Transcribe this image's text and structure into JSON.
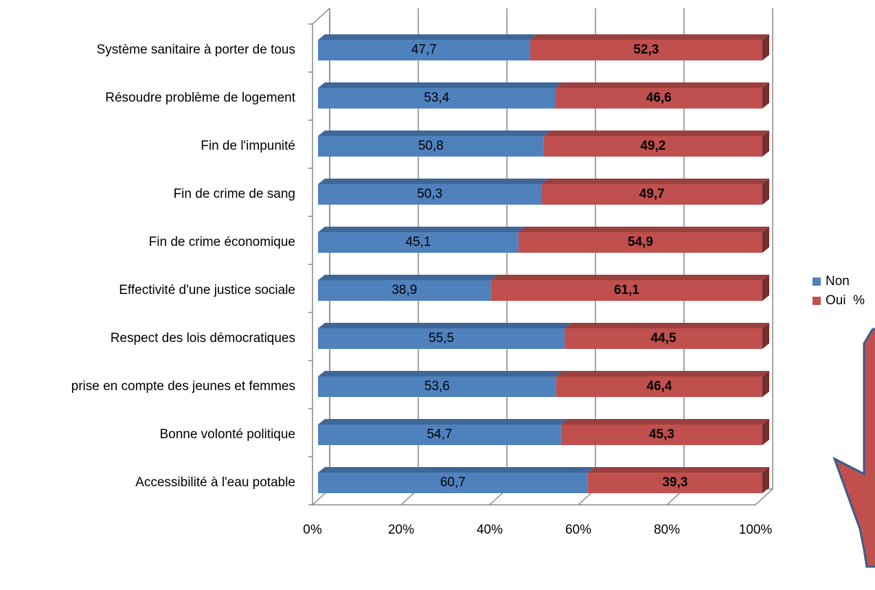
{
  "chart_data": {
    "type": "bar",
    "orientation": "horizontal",
    "stacked": true,
    "categories": [
      "Système sanitaire à porter de tous",
      "Résoudre problème de logement",
      "Fin de l'impunité",
      "Fin de crime de sang",
      "Fin de crime économique",
      "Effectivité d'une justice sociale",
      "Respect des lois démocratiques",
      "prise en compte des jeunes et femmes",
      "Bonne volonté politique",
      "Accessibilité à l'eau potable"
    ],
    "series": [
      {
        "name": "Non",
        "color": "#4f81bd",
        "values": [
          47.7,
          53.4,
          50.8,
          50.3,
          45.1,
          38.9,
          55.5,
          53.6,
          54.7,
          60.7
        ],
        "value_labels": [
          "47,7",
          "53,4",
          "50,8",
          "50,3",
          "45,1",
          "38,9",
          "55,5",
          "53,6",
          "54,7",
          "60,7"
        ]
      },
      {
        "name": "Oui  %",
        "color": "#c0504d",
        "values": [
          52.3,
          46.6,
          49.2,
          49.7,
          54.9,
          61.1,
          44.5,
          46.4,
          45.3,
          39.3
        ],
        "value_labels": [
          "52,3",
          "46,6",
          "49,2",
          "49,7",
          "54,9",
          "61,1",
          "44,5",
          "46,4",
          "45,3",
          "39,3"
        ]
      }
    ],
    "xlim": [
      0,
      100
    ],
    "xticks": [
      {
        "value": 0,
        "label": "0%"
      },
      {
        "value": 20,
        "label": "20%"
      },
      {
        "value": 40,
        "label": "40%"
      },
      {
        "value": 60,
        "label": "60%"
      },
      {
        "value": 80,
        "label": "80%"
      },
      {
        "value": 100,
        "label": "100%"
      }
    ],
    "grid": true,
    "legend": "right"
  }
}
